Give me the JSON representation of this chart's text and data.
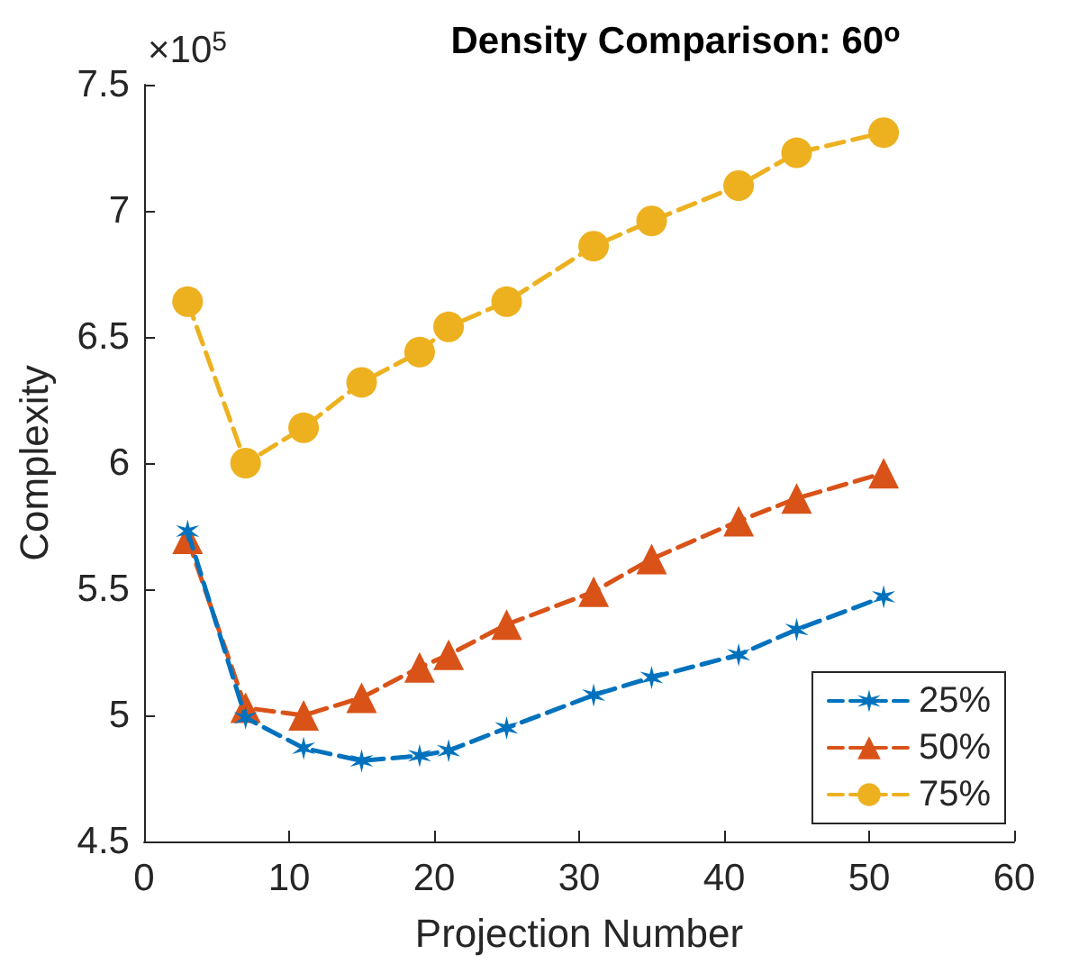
{
  "chart_data": {
    "type": "line",
    "title": "Density Comparison: 60$^{o}$",
    "xlabel": "Projection Number",
    "ylabel": "Complexity",
    "annotations": [
      "×10$^{5}$"
    ],
    "x": [
      3,
      7,
      11,
      15,
      19,
      21,
      25,
      31,
      35,
      41,
      45,
      51
    ],
    "series": [
      {
        "name": "25%",
        "color": "#0072bd",
        "marker": "cross",
        "values": [
          5.73,
          4.99,
          4.87,
          4.82,
          4.84,
          4.86,
          4.95,
          5.08,
          5.15,
          5.24,
          5.34,
          5.47
        ]
      },
      {
        "name": "50%",
        "color": "#d95319",
        "marker": "triangle",
        "values": [
          5.7,
          5.03,
          5.0,
          5.07,
          5.19,
          5.24,
          5.36,
          5.49,
          5.62,
          5.77,
          5.86,
          5.96
        ]
      },
      {
        "name": "75%",
        "color": "#edb120",
        "marker": "circle",
        "values": [
          6.64,
          6.0,
          6.14,
          6.32,
          6.44,
          6.54,
          6.64,
          6.86,
          6.96,
          7.1,
          7.23,
          7.31
        ]
      }
    ],
    "xlim": [
      0,
      60
    ],
    "xticks": [
      0,
      10,
      20,
      30,
      40,
      50,
      60
    ],
    "ylim": [
      4.5,
      7.5
    ],
    "yticks": [
      4.5,
      5,
      5.5,
      6,
      6.5,
      7,
      7.5
    ],
    "line_style": "dashed",
    "legend": "bottom right",
    "grid": false
  }
}
